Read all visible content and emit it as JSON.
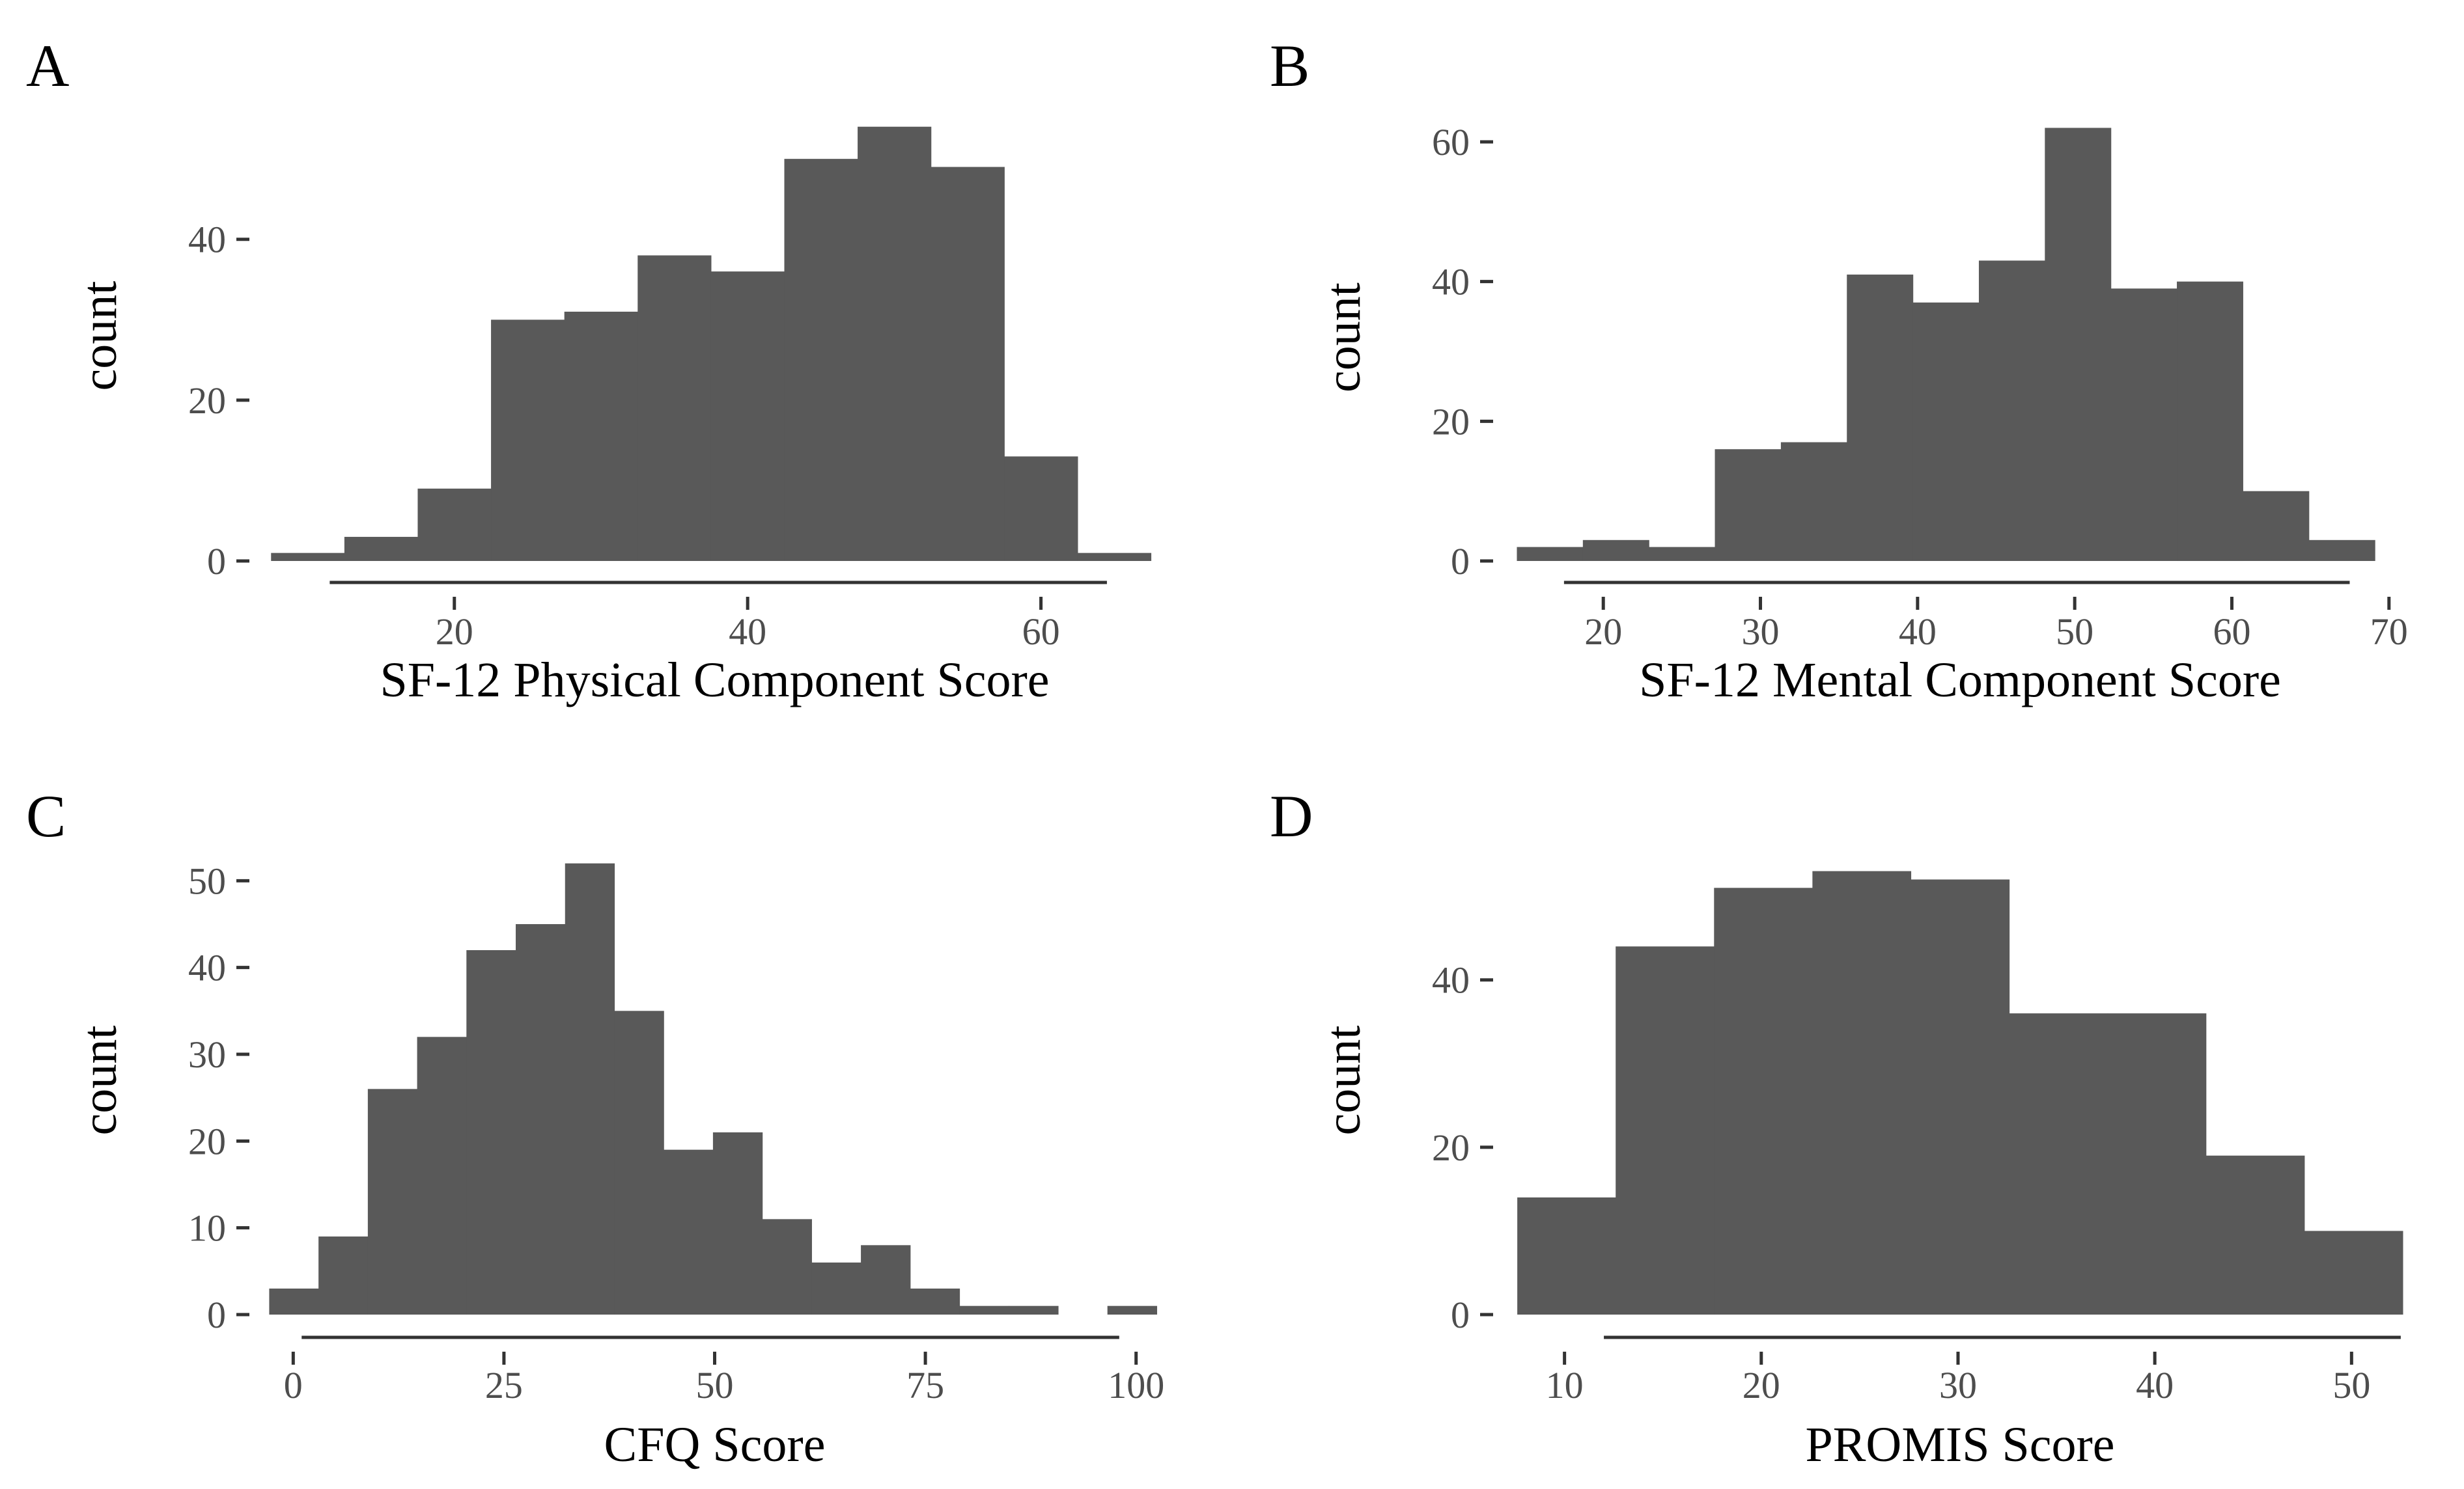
{
  "chart_data": [
    {
      "panel": "A",
      "type": "bar",
      "xlabel": "SF-12 Physical Component Score",
      "ylabel": "count",
      "xlim": [
        7.0,
        68.5
      ],
      "ylim": [
        0,
        56
      ],
      "xticks": [
        20,
        40,
        60
      ],
      "yticks": [
        0,
        20,
        40
      ],
      "xaxis_line": [
        11.5,
        64.5
      ],
      "bins": [
        {
          "x0": 7.5,
          "x1": 12.5,
          "count": 1
        },
        {
          "x0": 12.5,
          "x1": 17.5,
          "count": 3
        },
        {
          "x0": 17.5,
          "x1": 22.5,
          "count": 9
        },
        {
          "x0": 22.5,
          "x1": 27.5,
          "count": 30
        },
        {
          "x0": 27.5,
          "x1": 32.5,
          "count": 31
        },
        {
          "x0": 32.5,
          "x1": 37.5,
          "count": 38
        },
        {
          "x0": 37.5,
          "x1": 42.5,
          "count": 36
        },
        {
          "x0": 42.5,
          "x1": 47.5,
          "count": 50
        },
        {
          "x0": 47.5,
          "x1": 52.5,
          "count": 54
        },
        {
          "x0": 52.5,
          "x1": 57.5,
          "count": 49
        },
        {
          "x0": 57.5,
          "x1": 62.5,
          "count": 13
        },
        {
          "x0": 62.5,
          "x1": 67.5,
          "count": 1
        }
      ]
    },
    {
      "panel": "B",
      "type": "bar",
      "xlabel": "SF-12 Mental Component Score",
      "ylabel": "count",
      "xlim": [
        13.9,
        71.5
      ],
      "ylim": [
        0,
        64
      ],
      "xticks": [
        20,
        30,
        40,
        50,
        60,
        70
      ],
      "yticks": [
        0,
        20,
        40,
        60
      ],
      "xaxis_line": [
        17.5,
        67.5
      ],
      "bins": [
        {
          "x0": 14.5,
          "x1": 18.7,
          "count": 2
        },
        {
          "x0": 18.7,
          "x1": 22.9,
          "count": 3
        },
        {
          "x0": 22.9,
          "x1": 27.1,
          "count": 2
        },
        {
          "x0": 27.1,
          "x1": 31.3,
          "count": 16
        },
        {
          "x0": 31.3,
          "x1": 35.5,
          "count": 17
        },
        {
          "x0": 35.5,
          "x1": 39.7,
          "count": 41
        },
        {
          "x0": 39.7,
          "x1": 43.9,
          "count": 37
        },
        {
          "x0": 43.9,
          "x1": 48.1,
          "count": 43
        },
        {
          "x0": 48.1,
          "x1": 52.3,
          "count": 62
        },
        {
          "x0": 52.3,
          "x1": 56.5,
          "count": 39
        },
        {
          "x0": 56.5,
          "x1": 60.7,
          "count": 40
        },
        {
          "x0": 60.7,
          "x1": 64.9,
          "count": 10
        },
        {
          "x0": 64.9,
          "x1": 69.1,
          "count": 3
        }
      ]
    },
    {
      "panel": "C",
      "type": "bar",
      "xlabel": "CFQ Score",
      "ylabel": "count",
      "xlim": [
        -3.5,
        103.5
      ],
      "ylim": [
        0,
        54
      ],
      "xticks": [
        0,
        25,
        50,
        75,
        100
      ],
      "yticks": [
        0,
        10,
        20,
        30,
        40,
        50
      ],
      "tick_labels_x": [
        "0",
        "25",
        "50",
        "75",
        "100"
      ],
      "xaxis_line": [
        1,
        98
      ],
      "bins": [
        {
          "x0": -2.85,
          "x1": 3.0,
          "count": 3
        },
        {
          "x0": 3.0,
          "x1": 8.85,
          "count": 9
        },
        {
          "x0": 8.85,
          "x1": 14.7,
          "count": 26
        },
        {
          "x0": 14.7,
          "x1": 20.55,
          "count": 32
        },
        {
          "x0": 20.55,
          "x1": 26.4,
          "count": 42
        },
        {
          "x0": 26.4,
          "x1": 32.25,
          "count": 45
        },
        {
          "x0": 32.25,
          "x1": 38.1,
          "count": 52
        },
        {
          "x0": 38.1,
          "x1": 43.95,
          "count": 35
        },
        {
          "x0": 43.95,
          "x1": 49.8,
          "count": 19
        },
        {
          "x0": 49.8,
          "x1": 55.65,
          "count": 21
        },
        {
          "x0": 55.65,
          "x1": 61.5,
          "count": 11
        },
        {
          "x0": 61.5,
          "x1": 67.35,
          "count": 6
        },
        {
          "x0": 67.35,
          "x1": 73.2,
          "count": 8
        },
        {
          "x0": 73.2,
          "x1": 79.05,
          "count": 3
        },
        {
          "x0": 79.05,
          "x1": 84.9,
          "count": 1
        },
        {
          "x0": 84.9,
          "x1": 90.75,
          "count": 1
        },
        {
          "x0": 90.75,
          "x1": 96.6,
          "count": 0
        },
        {
          "x0": 96.6,
          "x1": 102.45,
          "count": 1
        }
      ]
    },
    {
      "panel": "D",
      "type": "bar",
      "xlabel": "PROMIS Score",
      "ylabel": "count",
      "xlim": [
        7.1,
        53.1
      ],
      "ylim": [
        0,
        56
      ],
      "xticks": [
        10,
        20,
        30,
        40,
        50
      ],
      "yticks": [
        0,
        20,
        40
      ],
      "xaxis_line": [
        12,
        52.5
      ],
      "bins": [
        {
          "x0": 7.6,
          "x1": 12.6,
          "count": 14
        },
        {
          "x0": 12.6,
          "x1": 17.6,
          "count": 44
        },
        {
          "x0": 17.6,
          "x1": 22.6,
          "count": 51
        },
        {
          "x0": 22.6,
          "x1": 27.6,
          "count": 53
        },
        {
          "x0": 27.6,
          "x1": 32.6,
          "count": 52
        },
        {
          "x0": 32.6,
          "x1": 37.6,
          "count": 36
        },
        {
          "x0": 37.6,
          "x1": 42.6,
          "count": 36
        },
        {
          "x0": 42.6,
          "x1": 47.6,
          "count": 19
        },
        {
          "x0": 47.6,
          "x1": 52.6,
          "count": 10
        }
      ]
    }
  ]
}
